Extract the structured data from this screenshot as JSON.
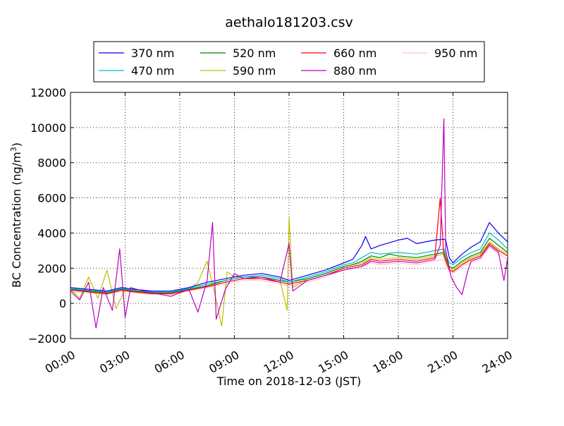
{
  "chart_data": {
    "type": "line",
    "title": "aethalo181203.csv",
    "xlabel": "Time on 2018-12-03 (JST)",
    "ylabel_main": "BC Concentration (ng/m",
    "ylabel_sup": "3",
    "ylabel_tail": ")",
    "xlim": [
      0,
      24
    ],
    "ylim": [
      -2000,
      12000
    ],
    "x_ticks": [
      0,
      3,
      6,
      9,
      12,
      15,
      18,
      21,
      24
    ],
    "x_tick_labels": [
      "00:00",
      "03:00",
      "06:00",
      "09:00",
      "12:00",
      "15:00",
      "18:00",
      "21:00",
      "24:00"
    ],
    "y_ticks": [
      -2000,
      0,
      2000,
      4000,
      6000,
      8000,
      10000,
      12000
    ],
    "y_tick_labels": [
      "−2000",
      "0",
      "2000",
      "4000",
      "6000",
      "8000",
      "10000",
      "12000"
    ],
    "grid": true,
    "legend_position": "top",
    "series": [
      {
        "name": "370 nm",
        "color": "#0000ff",
        "points": [
          [
            0,
            900
          ],
          [
            1,
            800
          ],
          [
            2,
            700
          ],
          [
            2.8,
            900
          ],
          [
            3.5,
            800
          ],
          [
            4.5,
            700
          ],
          [
            5.5,
            700
          ],
          [
            6.5,
            900
          ],
          [
            7.5,
            1200
          ],
          [
            8.5,
            1400
          ],
          [
            9.5,
            1600
          ],
          [
            10.5,
            1700
          ],
          [
            11.5,
            1500
          ],
          [
            12,
            1300
          ],
          [
            13,
            1600
          ],
          [
            14,
            1900
          ],
          [
            15,
            2300
          ],
          [
            15.5,
            2500
          ],
          [
            16,
            3300
          ],
          [
            16.2,
            3800
          ],
          [
            16.5,
            3100
          ],
          [
            17,
            3300
          ],
          [
            18,
            3600
          ],
          [
            18.5,
            3700
          ],
          [
            19,
            3400
          ],
          [
            19.5,
            3500
          ],
          [
            20,
            3600
          ],
          [
            20.5,
            3650
          ],
          [
            20.6,
            3600
          ],
          [
            20.8,
            2600
          ],
          [
            21,
            2300
          ],
          [
            21.5,
            2800
          ],
          [
            22,
            3200
          ],
          [
            22.5,
            3500
          ],
          [
            23,
            4600
          ],
          [
            23.5,
            4000
          ],
          [
            24,
            3500
          ]
        ]
      },
      {
        "name": "470 nm",
        "color": "#00bfbf",
        "points": [
          [
            0,
            850
          ],
          [
            1,
            750
          ],
          [
            2,
            650
          ],
          [
            2.8,
            850
          ],
          [
            3.5,
            750
          ],
          [
            4.5,
            650
          ],
          [
            5.5,
            650
          ],
          [
            6.5,
            850
          ],
          [
            7.5,
            1100
          ],
          [
            8.5,
            1300
          ],
          [
            9.5,
            1500
          ],
          [
            10.5,
            1600
          ],
          [
            11.5,
            1400
          ],
          [
            12,
            1200
          ],
          [
            13,
            1500
          ],
          [
            14,
            1800
          ],
          [
            15,
            2200
          ],
          [
            15.5,
            2300
          ],
          [
            16,
            2600
          ],
          [
            16.5,
            2900
          ],
          [
            17,
            2800
          ],
          [
            18,
            2900
          ],
          [
            19,
            2800
          ],
          [
            20,
            3000
          ],
          [
            20.5,
            3100
          ],
          [
            20.8,
            2300
          ],
          [
            21,
            2200
          ],
          [
            21.5,
            2600
          ],
          [
            22,
            2900
          ],
          [
            22.5,
            3100
          ],
          [
            23,
            4000
          ],
          [
            23.5,
            3600
          ],
          [
            24,
            3100
          ]
        ]
      },
      {
        "name": "520 nm",
        "color": "#008000",
        "points": [
          [
            0,
            800
          ],
          [
            1,
            700
          ],
          [
            2,
            600
          ],
          [
            2.8,
            800
          ],
          [
            3.5,
            700
          ],
          [
            4.5,
            600
          ],
          [
            5.5,
            600
          ],
          [
            6.5,
            800
          ],
          [
            7.5,
            1000
          ],
          [
            8.5,
            1300
          ],
          [
            9.5,
            1500
          ],
          [
            10.5,
            1500
          ],
          [
            11.5,
            1300
          ],
          [
            12,
            1200
          ],
          [
            13,
            1400
          ],
          [
            14,
            1700
          ],
          [
            15,
            2100
          ],
          [
            15.5,
            2200
          ],
          [
            16,
            2400
          ],
          [
            16.5,
            2700
          ],
          [
            17,
            2600
          ],
          [
            17.5,
            2800
          ],
          [
            18,
            2700
          ],
          [
            19,
            2600
          ],
          [
            20,
            2800
          ],
          [
            20.5,
            2900
          ],
          [
            20.8,
            2100
          ],
          [
            21,
            2000
          ],
          [
            21.5,
            2400
          ],
          [
            22,
            2700
          ],
          [
            22.5,
            2900
          ],
          [
            23,
            3700
          ],
          [
            23.5,
            3300
          ],
          [
            24,
            2900
          ]
        ]
      },
      {
        "name": "590 nm",
        "color": "#bfbf00",
        "points": [
          [
            0,
            800
          ],
          [
            0.5,
            300
          ],
          [
            1,
            1500
          ],
          [
            1.5,
            300
          ],
          [
            2,
            1900
          ],
          [
            2.5,
            -300
          ],
          [
            3,
            800
          ],
          [
            3.5,
            700
          ],
          [
            4.5,
            600
          ],
          [
            5.5,
            600
          ],
          [
            6.5,
            800
          ],
          [
            7,
            1200
          ],
          [
            7.5,
            2400
          ],
          [
            8,
            200
          ],
          [
            8.3,
            -1300
          ],
          [
            8.6,
            1800
          ],
          [
            9,
            1500
          ],
          [
            9.5,
            1500
          ],
          [
            10.5,
            1500
          ],
          [
            11.5,
            1300
          ],
          [
            11.9,
            -400
          ],
          [
            12,
            4900
          ],
          [
            12.2,
            900
          ],
          [
            13,
            1400
          ],
          [
            14,
            1700
          ],
          [
            15,
            2100
          ],
          [
            16,
            2300
          ],
          [
            16.5,
            2600
          ],
          [
            17,
            2500
          ],
          [
            18,
            2600
          ],
          [
            19,
            2500
          ],
          [
            20,
            2700
          ],
          [
            20.5,
            2800
          ],
          [
            20.8,
            2000
          ],
          [
            21,
            1900
          ],
          [
            21.5,
            2300
          ],
          [
            22,
            2600
          ],
          [
            22.5,
            2800
          ],
          [
            23,
            3500
          ],
          [
            23.5,
            3100
          ],
          [
            24,
            2800
          ]
        ]
      },
      {
        "name": "660 nm",
        "color": "#ff0000",
        "points": [
          [
            0,
            750
          ],
          [
            1,
            650
          ],
          [
            2,
            550
          ],
          [
            2.8,
            750
          ],
          [
            3.5,
            650
          ],
          [
            4.5,
            550
          ],
          [
            5.5,
            550
          ],
          [
            6.5,
            750
          ],
          [
            7.5,
            950
          ],
          [
            8.5,
            1200
          ],
          [
            9.5,
            1400
          ],
          [
            10.5,
            1400
          ],
          [
            11.5,
            1200
          ],
          [
            12,
            1100
          ],
          [
            13,
            1300
          ],
          [
            14,
            1600
          ],
          [
            15,
            2000
          ],
          [
            16,
            2200
          ],
          [
            16.5,
            2500
          ],
          [
            17,
            2400
          ],
          [
            18,
            2500
          ],
          [
            19,
            2400
          ],
          [
            20,
            2600
          ],
          [
            20.3,
            6000
          ],
          [
            20.5,
            2700
          ],
          [
            20.8,
            1900
          ],
          [
            21,
            1800
          ],
          [
            21.5,
            2200
          ],
          [
            22,
            2500
          ],
          [
            22.5,
            2700
          ],
          [
            23,
            3400
          ],
          [
            23.5,
            3000
          ],
          [
            24,
            2700
          ]
        ]
      },
      {
        "name": "880 nm",
        "color": "#bf00bf",
        "points": [
          [
            0,
            700
          ],
          [
            0.5,
            200
          ],
          [
            1,
            1200
          ],
          [
            1.4,
            -1400
          ],
          [
            1.8,
            900
          ],
          [
            2.3,
            -400
          ],
          [
            2.7,
            3100
          ],
          [
            3,
            -800
          ],
          [
            3.3,
            900
          ],
          [
            4,
            700
          ],
          [
            5,
            500
          ],
          [
            5.5,
            400
          ],
          [
            6.5,
            800
          ],
          [
            7,
            -500
          ],
          [
            7.5,
            1300
          ],
          [
            7.8,
            4600
          ],
          [
            8,
            -900
          ],
          [
            8.5,
            800
          ],
          [
            9,
            1700
          ],
          [
            9.5,
            1400
          ],
          [
            10.5,
            1500
          ],
          [
            11.5,
            1200
          ],
          [
            12,
            3400
          ],
          [
            12.2,
            700
          ],
          [
            13,
            1300
          ],
          [
            14,
            1600
          ],
          [
            15,
            1900
          ],
          [
            16,
            2100
          ],
          [
            16.5,
            2400
          ],
          [
            17,
            2300
          ],
          [
            18,
            2400
          ],
          [
            19,
            2300
          ],
          [
            20,
            2500
          ],
          [
            20.3,
            3300
          ],
          [
            20.5,
            10500
          ],
          [
            20.6,
            3000
          ],
          [
            20.9,
            1500
          ],
          [
            21.2,
            900
          ],
          [
            21.5,
            500
          ],
          [
            21.8,
            1800
          ],
          [
            22,
            2400
          ],
          [
            22.5,
            2600
          ],
          [
            23,
            3300
          ],
          [
            23.5,
            2900
          ],
          [
            23.8,
            1300
          ],
          [
            24,
            2600
          ]
        ]
      },
      {
        "name": "950 nm",
        "color": "#ffc0cb",
        "points": [
          [
            0,
            650
          ],
          [
            1,
            600
          ],
          [
            2,
            500
          ],
          [
            2.8,
            700
          ],
          [
            3.5,
            600
          ],
          [
            4.5,
            500
          ],
          [
            5.5,
            500
          ],
          [
            6.5,
            700
          ],
          [
            7.5,
            900
          ],
          [
            8.5,
            1100
          ],
          [
            9.5,
            1300
          ],
          [
            10.5,
            1300
          ],
          [
            11.5,
            1100
          ],
          [
            12,
            1000
          ],
          [
            13,
            1200
          ],
          [
            14,
            1500
          ],
          [
            15,
            1900
          ],
          [
            16,
            2100
          ],
          [
            16.5,
            2300
          ],
          [
            17,
            2200
          ],
          [
            18,
            2300
          ],
          [
            19,
            2200
          ],
          [
            20,
            2400
          ],
          [
            20.5,
            2500
          ],
          [
            20.8,
            1800
          ],
          [
            21,
            1700
          ],
          [
            21.5,
            2100
          ],
          [
            22,
            2300
          ],
          [
            22.5,
            2500
          ],
          [
            23,
            3200
          ],
          [
            23.5,
            2800
          ],
          [
            24,
            2500
          ]
        ]
      }
    ]
  }
}
